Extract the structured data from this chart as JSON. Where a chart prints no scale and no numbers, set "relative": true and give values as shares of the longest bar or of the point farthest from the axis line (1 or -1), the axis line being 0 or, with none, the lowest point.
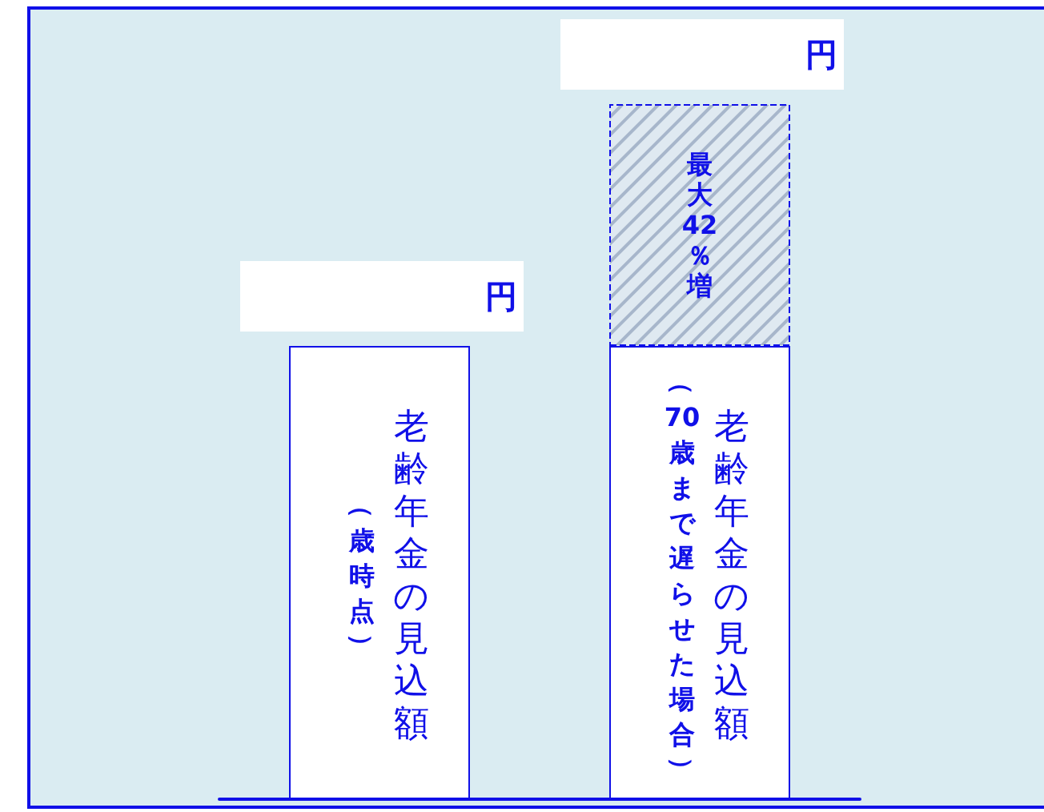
{
  "chart_data": {
    "type": "bar",
    "stacked": true,
    "relative": true,
    "categories": [
      null,
      null
    ],
    "series": [
      {
        "color": "#ffffff",
        "values": [
          0.652,
          0.652
        ]
      },
      {
        "color": "#dfe9f1",
        "line_style": "dashed",
        "values": [
          null,
          0.348
        ]
      }
    ],
    "annotations": [
      "円",
      "円",
      "老齢年金の見込額",
      "老齢年金の見込額",
      "（歳時点）",
      "（70歳まで遅らせた場合）",
      "最大42％増"
    ]
  }
}
